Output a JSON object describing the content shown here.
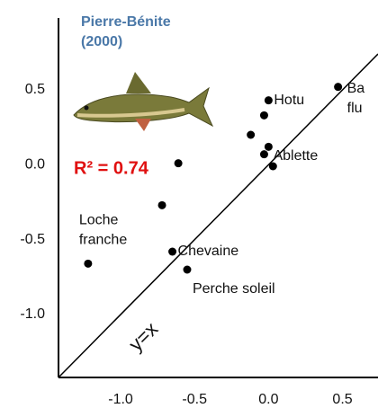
{
  "chart_data": {
    "type": "scatter",
    "title": [
      "Pierre-Bénite",
      "(2000)"
    ],
    "annotation": "R² = 0.74",
    "reference_line": "y=x",
    "color": "#000000",
    "x": [
      -1.22,
      -0.65,
      -0.55,
      -0.72,
      -0.61,
      -0.12,
      -0.03,
      0.0,
      0.03,
      0.0,
      -0.03,
      0.47
    ],
    "values": [
      -0.66,
      -0.58,
      -0.7,
      -0.27,
      0.01,
      0.2,
      0.33,
      0.43,
      -0.01,
      0.12,
      0.07,
      0.52
    ],
    "labels": [
      [
        "Loche",
        "franche"
      ],
      [
        "Chevaine"
      ],
      [
        "Perche soleil"
      ],
      null,
      null,
      null,
      null,
      [
        "Hotu"
      ],
      null,
      null,
      [
        "Ablette"
      ],
      [
        "Ba",
        "flu"
      ]
    ],
    "xlim": [
      -1.42,
      0.74
    ],
    "ylim": [
      -1.42,
      0.74
    ],
    "xticks": [
      {
        "value": -1.0,
        "label": "-1.0"
      },
      {
        "value": -0.5,
        "label": "-0.5"
      },
      {
        "value": 0.0,
        "label": "0.0"
      },
      {
        "value": 0.5,
        "label": "0.5"
      }
    ],
    "yticks": [
      {
        "value": 0.5,
        "label": "0.5"
      },
      {
        "value": 0.0,
        "label": "0.0"
      },
      {
        "value": -0.5,
        "label": "-0.5"
      },
      {
        "value": -1.0,
        "label": "-1.0"
      }
    ]
  }
}
